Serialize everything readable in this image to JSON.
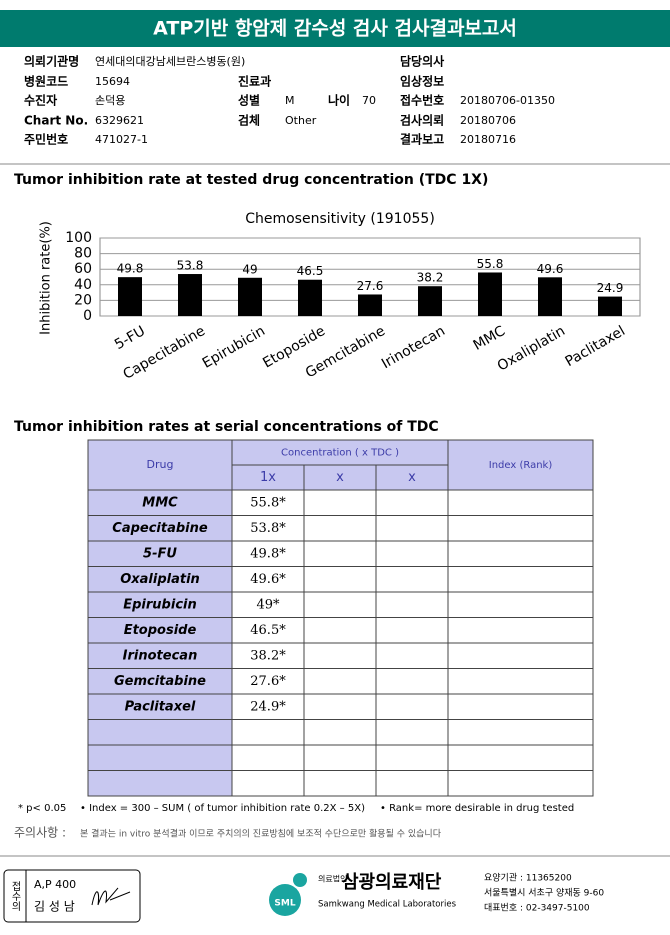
{
  "header": {
    "title": "ATP기반 항암제 감수성 검사 검사결과보고서"
  },
  "info": [
    {
      "label": "의뢰기관명",
      "value": "연세대의대강남세브란스병동(원)"
    },
    {
      "label": "담당의사"
    },
    {
      "label": "병원코드",
      "value": "15694"
    },
    {
      "label": "진료과"
    },
    {
      "label": "임상정보"
    },
    {
      "label": "수진자",
      "value": "손덕용"
    },
    {
      "label": "성별",
      "value": "M"
    },
    {
      "label": "나이",
      "value": "70"
    },
    {
      "label": "접수번호",
      "value": "20180706-01350"
    },
    {
      "label": "Chart No.",
      "value": "6329621"
    },
    {
      "label": "검체",
      "value": "Other"
    },
    {
      "label": "검사의뢰",
      "value": "20180706"
    },
    {
      "label": "주민번호",
      "value": "471027-1"
    },
    {
      "label": "결과보고",
      "value": "20180716"
    }
  ],
  "sections": [
    "Tumor inhibition rate at tested drug concentration (TDC 1X)",
    "Tumor inhibition rates at serial concentrations of TDC"
  ],
  "chart_data": {
    "type": "bar",
    "title": "Chemosensitivity (191055)",
    "ylabel": "Inhibition rate(%)",
    "categories": [
      "5-FU",
      "Capecitabine",
      "Epirubicin",
      "Etoposide",
      "Gemcitabine",
      "Irinotecan",
      "MMC",
      "Oxaliplatin",
      "Paclitaxel"
    ],
    "values": [
      49.8,
      53.8,
      49,
      46.5,
      27.6,
      38.2,
      55.8,
      49.6,
      24.9
    ],
    "color": "#000000",
    "ylim": [
      0,
      100
    ],
    "yticks": [
      0,
      20,
      40,
      60,
      80,
      100
    ],
    "grid": true
  },
  "table": {
    "header": {
      "drug": "Drug",
      "concentration": "Concentration ( x TDC )",
      "columns": [
        "1x",
        "x",
        "x"
      ],
      "index": "Index (Rank)"
    },
    "rows": [
      [
        "MMC",
        "55.8*"
      ],
      [
        "Capecitabine",
        "53.8*"
      ],
      [
        "5-FU",
        "49.8*"
      ],
      [
        "Oxaliplatin",
        "49.6*"
      ],
      [
        "Epirubicin",
        "49*"
      ],
      [
        "Etoposide",
        "46.5*"
      ],
      [
        "Irinotecan",
        "38.2*"
      ],
      [
        "Gemcitabine",
        "27.6*"
      ],
      [
        "Paclitaxel",
        "24.9*"
      ]
    ]
  },
  "footnotes": [
    "* p< 0.05",
    "• Index = 300 – SUM ( of tumor inhibition rate 0.2X – 5X)",
    "• Rank= more desirable in drug tested"
  ],
  "notice": {
    "label": "주의사항 :",
    "text": "본 결과는 in vitro 분석결과 이므로 주치의의 진료방침에 보조적 수단으로만 활용될 수 있습니다"
  },
  "footer": {
    "stamp": "접수의",
    "code": "A,P 400",
    "name": "김 성 남",
    "logo": "SML",
    "corp": "의료법인",
    "org": "삼광의료재단",
    "org_en": "Samkwang Medical Laboratories",
    "contact": [
      "요양기관 : 11365200",
      "서울특별시 서초구 양재동 9-60",
      "대표번호 : 02-3497-5100"
    ]
  }
}
